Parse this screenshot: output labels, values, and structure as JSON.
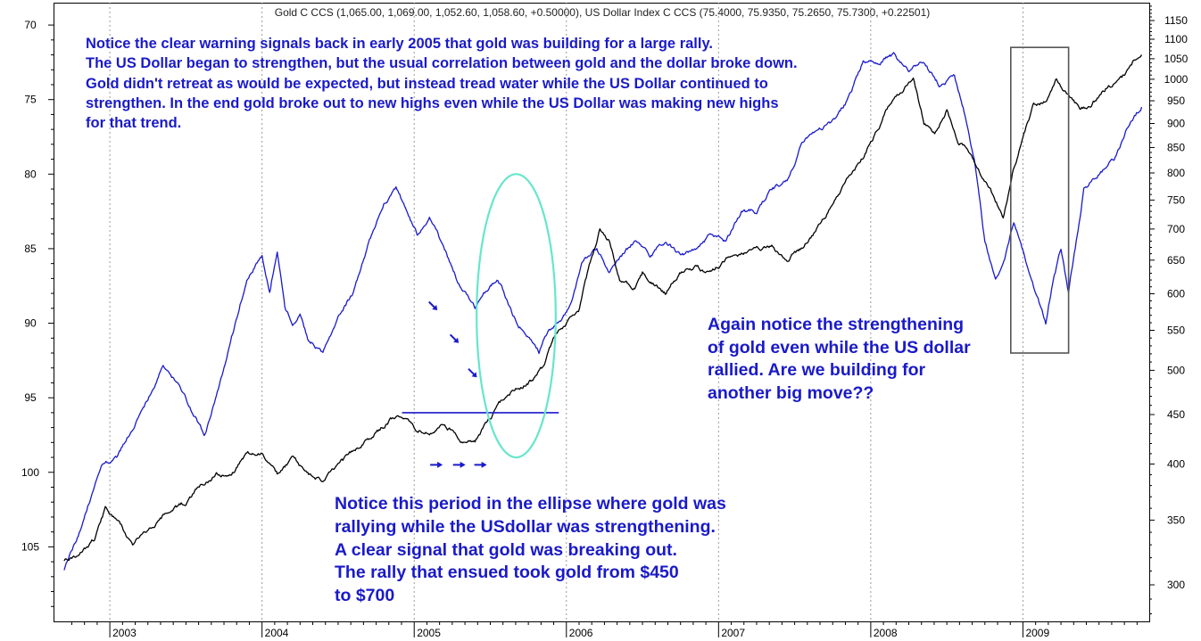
{
  "chart_data": {
    "type": "line",
    "title": "Gold C CCS (1,065.00, 1,069.00, 1,052.60, 1,058.60, +0.50000), US Dollar Index C CCS (75.4000, 75.9350, 75.2650, 75.7300, +0.22501)",
    "x_ticks": [
      "2003",
      "2004",
      "2005",
      "2006",
      "2007",
      "2008",
      "2009"
    ],
    "left_axis": {
      "label": "",
      "inverted": true,
      "ylim": [
        110.0,
        68.5
      ],
      "ticks": [
        "70",
        "75",
        "80",
        "85",
        "90",
        "95",
        "100",
        "105"
      ]
    },
    "right_axis": {
      "label": "",
      "scale": "log",
      "ylim": [
        275,
        1200
      ],
      "ticks": [
        "1150",
        "1100",
        "1050",
        "1000",
        "950",
        "900",
        "850",
        "800",
        "750",
        "700",
        "650",
        "600",
        "550",
        "500",
        "450",
        "400",
        "350",
        "300"
      ]
    },
    "grid": "vertical dotted lines at year boundaries",
    "series": [
      {
        "name": "US Dollar Index",
        "axis": "left",
        "color": "#1a1acc",
        "x": [
          2002.7,
          2002.78,
          2002.88,
          2002.95,
          2003.05,
          2003.15,
          2003.25,
          2003.35,
          2003.45,
          2003.55,
          2003.62,
          2003.7,
          2003.8,
          2003.9,
          2004.0,
          2004.05,
          2004.1,
          2004.15,
          2004.2,
          2004.25,
          2004.3,
          2004.4,
          2004.5,
          2004.6,
          2004.7,
          2004.8,
          2004.88,
          2004.95,
          2005.02,
          2005.1,
          2005.2,
          2005.3,
          2005.4,
          2005.45,
          2005.55,
          2005.65,
          2005.75,
          2005.82,
          2005.88,
          2005.95,
          2006.02,
          2006.1,
          2006.2,
          2006.28,
          2006.35,
          2006.45,
          2006.55,
          2006.65,
          2006.75,
          2006.85,
          2006.95,
          2007.05,
          2007.15,
          2007.25,
          2007.35,
          2007.45,
          2007.55,
          2007.65,
          2007.75,
          2007.85,
          2007.95,
          2008.05,
          2008.15,
          2008.25,
          2008.35,
          2008.45,
          2008.55,
          2008.62,
          2008.68,
          2008.75,
          2008.82,
          2008.88,
          2008.94,
          2009.0,
          2009.05,
          2009.1,
          2009.15,
          2009.2,
          2009.25,
          2009.3,
          2009.4,
          2009.5,
          2009.6,
          2009.7,
          2009.78
        ],
        "values": [
          106.5,
          104.5,
          101.5,
          99.5,
          99.0,
          97.0,
          95.0,
          93.0,
          94.0,
          96.0,
          97.5,
          95.0,
          91.0,
          87.0,
          85.5,
          88.0,
          85.0,
          89.0,
          90.0,
          89.5,
          91.0,
          92.0,
          89.5,
          88.0,
          84.5,
          82.0,
          81.0,
          82.5,
          84.0,
          83.0,
          85.0,
          87.5,
          89.0,
          88.0,
          87.0,
          89.5,
          91.0,
          92.0,
          90.5,
          90.0,
          89.0,
          86.0,
          85.0,
          86.5,
          85.5,
          84.5,
          85.5,
          84.5,
          85.5,
          85.0,
          84.0,
          84.5,
          82.5,
          82.5,
          81.0,
          80.5,
          78.0,
          77.0,
          76.5,
          75.0,
          72.5,
          72.5,
          72.0,
          73.0,
          72.5,
          74.0,
          73.5,
          76.0,
          79.0,
          84.5,
          87.0,
          85.5,
          83.0,
          85.0,
          87.0,
          88.5,
          90.0,
          87.0,
          85.0,
          88.0,
          81.0,
          80.0,
          79.0,
          76.5,
          75.5
        ]
      },
      {
        "name": "Gold",
        "axis": "right",
        "color": "#000000",
        "x": [
          2002.7,
          2002.8,
          2002.9,
          2002.97,
          2003.05,
          2003.15,
          2003.22,
          2003.3,
          2003.4,
          2003.5,
          2003.6,
          2003.7,
          2003.8,
          2003.9,
          2004.0,
          2004.1,
          2004.2,
          2004.3,
          2004.4,
          2004.48,
          2004.55,
          2004.65,
          2004.75,
          2004.85,
          2004.92,
          2005.0,
          2005.1,
          2005.2,
          2005.3,
          2005.4,
          2005.45,
          2005.5,
          2005.55,
          2005.62,
          2005.7,
          2005.78,
          2005.85,
          2005.92,
          2006.0,
          2006.08,
          2006.15,
          2006.22,
          2006.28,
          2006.35,
          2006.45,
          2006.5,
          2006.55,
          2006.65,
          2006.75,
          2006.85,
          2006.95,
          2007.05,
          2007.15,
          2007.25,
          2007.35,
          2007.45,
          2007.55,
          2007.65,
          2007.75,
          2007.85,
          2007.95,
          2008.05,
          2008.12,
          2008.2,
          2008.28,
          2008.35,
          2008.42,
          2008.5,
          2008.58,
          2008.65,
          2008.72,
          2008.8,
          2008.87,
          2008.93,
          2009.0,
          2009.07,
          2009.15,
          2009.22,
          2009.3,
          2009.38,
          2009.45,
          2009.55,
          2009.65,
          2009.72,
          2009.78
        ],
        "values": [
          318,
          322,
          335,
          360,
          350,
          330,
          340,
          345,
          360,
          365,
          380,
          390,
          390,
          410,
          410,
          390,
          405,
          390,
          385,
          395,
          405,
          420,
          430,
          445,
          450,
          435,
          430,
          440,
          425,
          420,
          435,
          445,
          460,
          475,
          480,
          490,
          505,
          540,
          560,
          575,
          640,
          700,
          680,
          620,
          610,
          630,
          620,
          600,
          630,
          640,
          630,
          650,
          660,
          665,
          670,
          650,
          670,
          700,
          740,
          790,
          830,
          890,
          940,
          970,
          1000,
          900,
          880,
          930,
          860,
          840,
          800,
          760,
          720,
          800,
          870,
          940,
          950,
          1000,
          960,
          930,
          940,
          980,
          1000,
          1040,
          1060
        ]
      }
    ],
    "annotations": [
      {
        "type": "hline",
        "axis": "right",
        "value": 452,
        "x_from": 2004.92,
        "x_to": 2005.95,
        "color": "#1a1acc"
      },
      {
        "type": "ellipse",
        "x_center": 2005.67,
        "y_center": 89.5,
        "x_radius": 0.26,
        "y_radius": 9.5,
        "color": "#66e6cc"
      },
      {
        "type": "rect",
        "x_from": 2008.92,
        "x_to": 2009.3,
        "y_top": 71.5,
        "y_bottom": 92.0,
        "color": "#555555"
      },
      {
        "type": "arrow",
        "direction": "down-right",
        "x": 2005.12,
        "y": 88.8,
        "color": "#1a1acc"
      },
      {
        "type": "arrow",
        "direction": "down-right",
        "x": 2005.26,
        "y": 91.0,
        "color": "#1a1acc"
      },
      {
        "type": "arrow",
        "direction": "down-right",
        "x": 2005.38,
        "y": 93.3,
        "color": "#1a1acc"
      },
      {
        "type": "arrow",
        "direction": "right",
        "x": 2005.14,
        "y": 99.5,
        "color": "#1a1acc"
      },
      {
        "type": "arrow",
        "direction": "right",
        "x": 2005.29,
        "y": 99.5,
        "color": "#1a1acc"
      },
      {
        "type": "arrow",
        "direction": "right",
        "x": 2005.43,
        "y": 99.5,
        "color": "#1a1acc"
      }
    ]
  },
  "notes": {
    "top": [
      "Notice the clear warning signals back in early 2005 that gold was building for a large rally.",
      "The US Dollar began to strengthen, but the usual correlation between gold and the dollar broke down.",
      "Gold didn't retreat as would be expected, but instead tread water while the US Dollar continued to",
      "strengthen.  In the end gold broke out to new highs even while the US Dollar was making new highs",
      "for that trend."
    ],
    "right": [
      "Again notice the strengthening",
      "of gold even while the US dollar",
      "rallied.  Are we building for",
      "another big move??"
    ],
    "bottom": [
      "Notice this period in the ellipse where gold was",
      "rallying while the USdollar was strengthening.",
      "A clear signal that gold was breaking out.",
      "The rally that ensued took gold from $450",
      "to $700"
    ]
  }
}
